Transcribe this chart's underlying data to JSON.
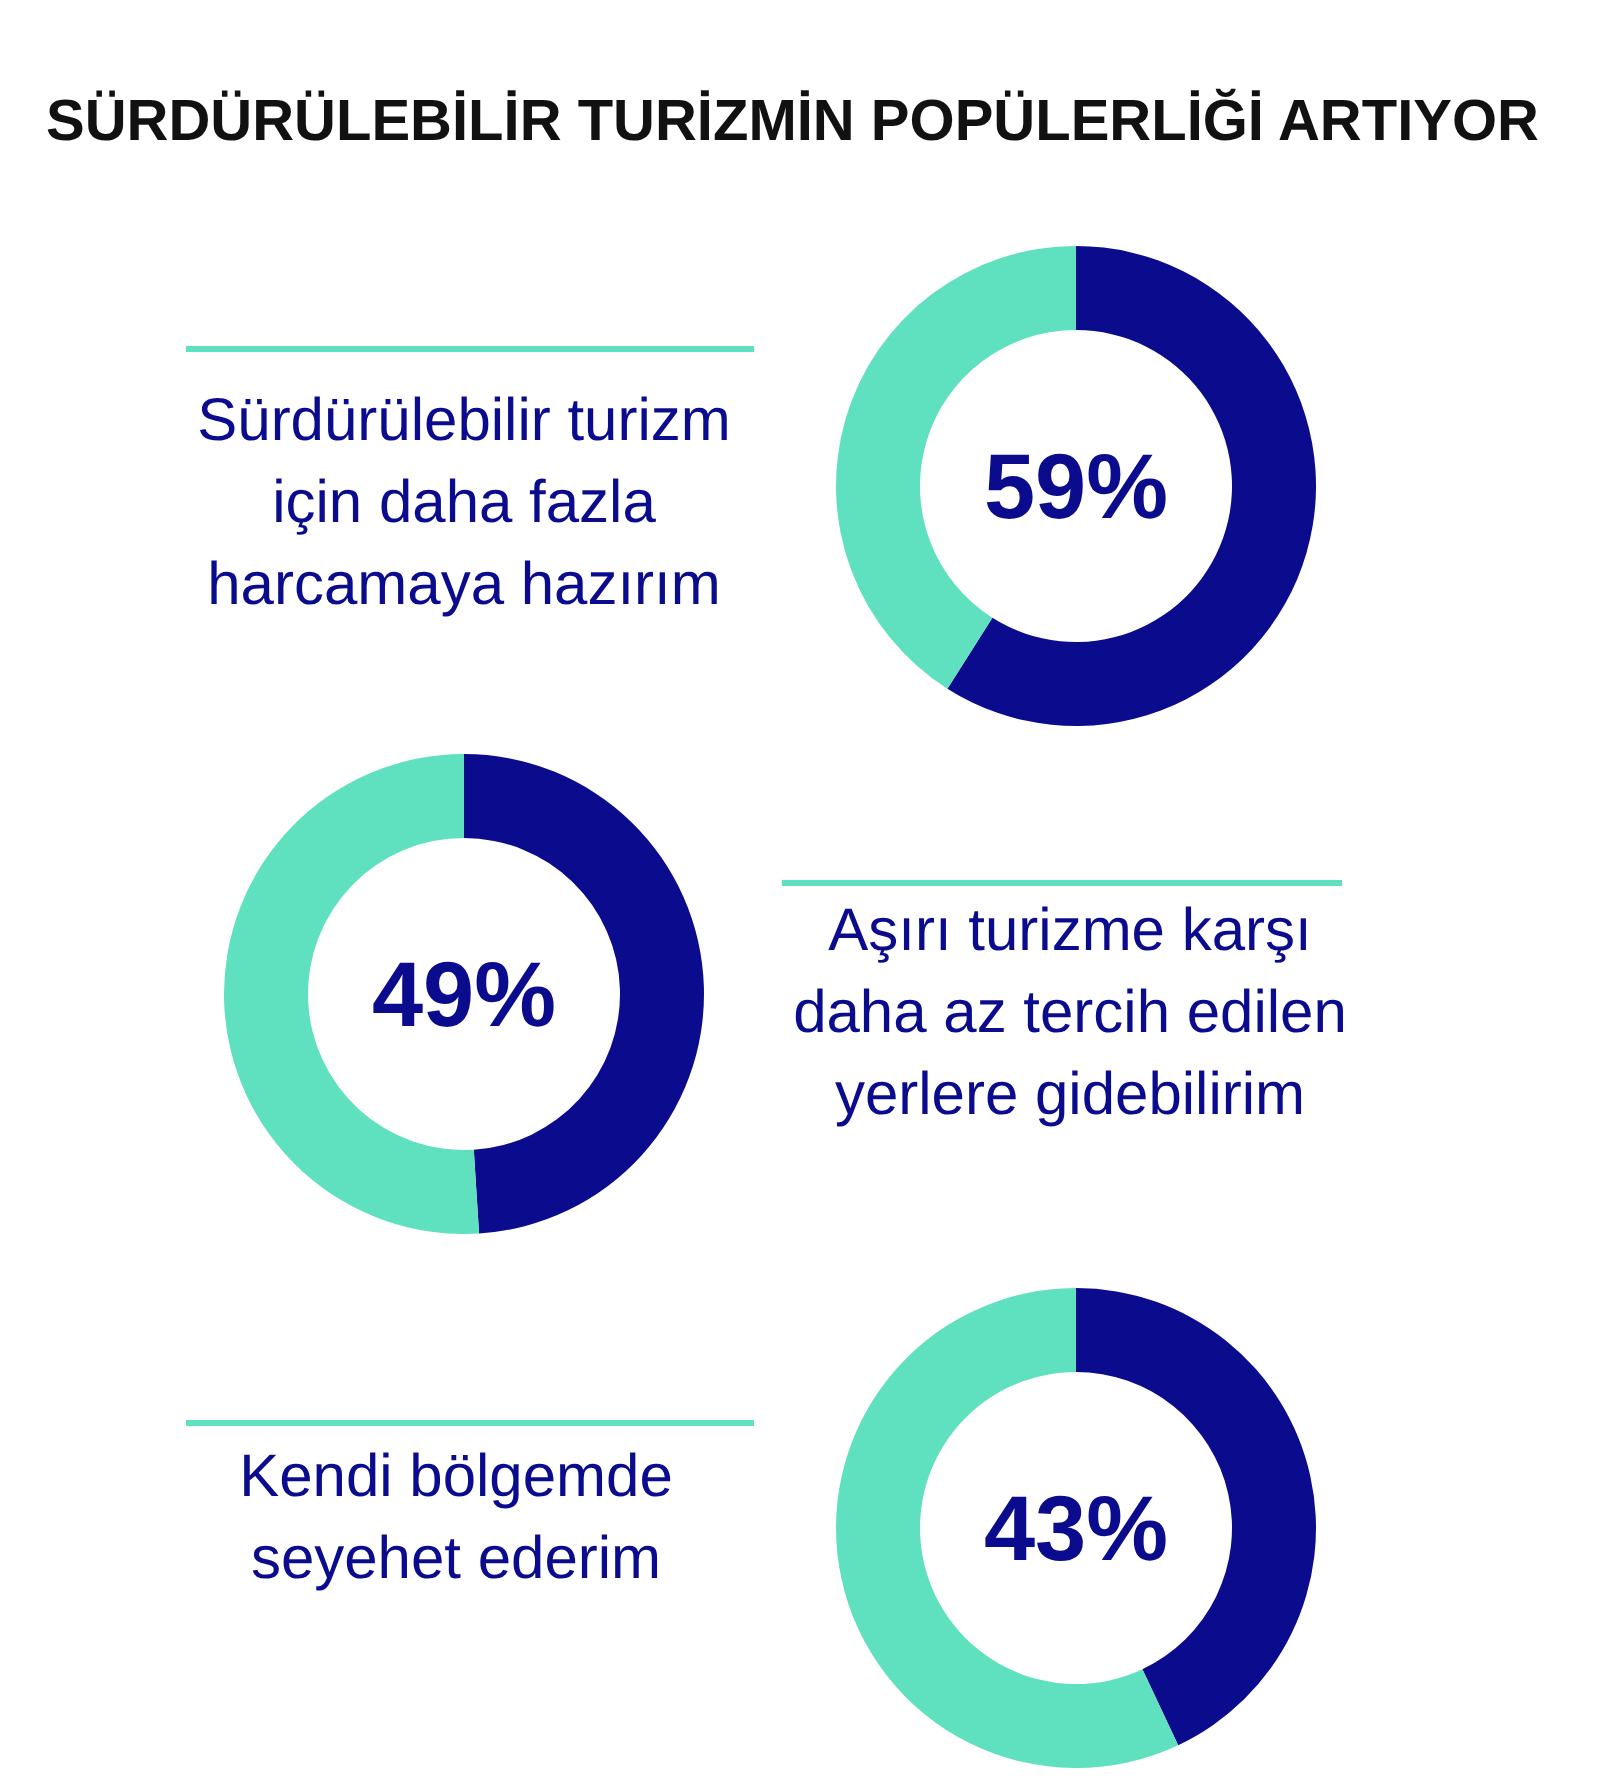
{
  "chart_data": [
    {
      "type": "donut",
      "title": "SÜRDÜRÜLEBİLİR TURİZMİN POPÜLERLİĞİ ARTIYOR",
      "subtitle": "Sürdürülebilir turizm için daha fazla harcamaya hazırım",
      "categories": [
        null,
        null
      ],
      "values": [
        59,
        41
      ],
      "colors": [
        "#0b0b8e",
        "#5fe0bf"
      ],
      "annotations": [
        "59%"
      ]
    },
    {
      "type": "donut",
      "subtitle": "Aşırı turizme karşı daha az tercih edilen yerlere gidebilirim",
      "categories": [
        null,
        null
      ],
      "values": [
        49,
        51
      ],
      "colors": [
        "#0b0b8e",
        "#5fe0bf"
      ],
      "annotations": [
        "49%"
      ]
    },
    {
      "type": "donut",
      "subtitle": "Kendi bölgemde seyehet ederim",
      "categories": [
        null,
        null
      ],
      "values": [
        43,
        57
      ],
      "colors": [
        "#0b0b8e",
        "#5fe0bf"
      ],
      "annotations": [
        "43%"
      ]
    }
  ]
}
